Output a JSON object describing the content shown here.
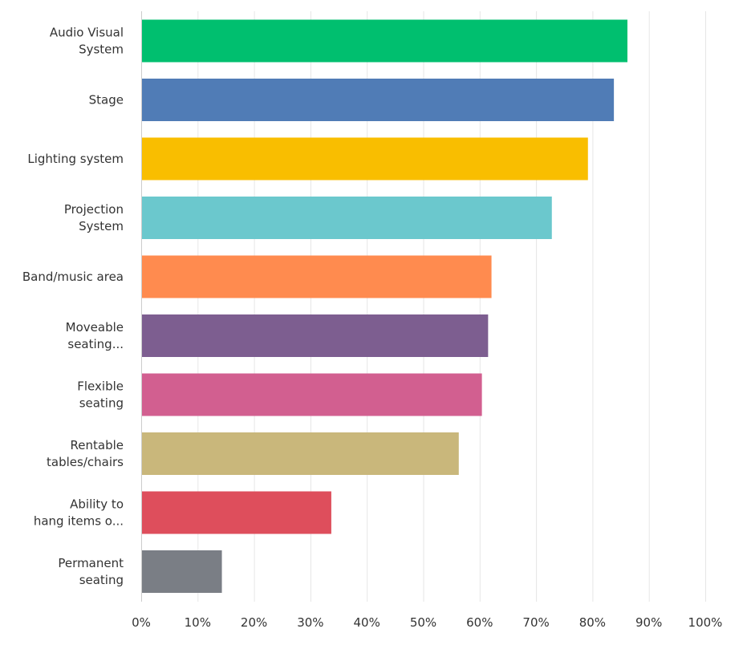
{
  "chart_data": {
    "type": "bar",
    "orientation": "horizontal",
    "title": "",
    "xlabel": "",
    "ylabel": "",
    "xlim": [
      0,
      100
    ],
    "grid": true,
    "categories": [
      [
        "Audio Visual",
        "System"
      ],
      [
        "Stage"
      ],
      [
        "Lighting system"
      ],
      [
        "Projection",
        "System"
      ],
      [
        "Band/music area"
      ],
      [
        "Moveable",
        "seating..."
      ],
      [
        "Flexible",
        "seating"
      ],
      [
        "Rentable",
        "tables/chairs"
      ],
      [
        "Ability to",
        "hang items o..."
      ],
      [
        "Permanent",
        "seating"
      ]
    ],
    "values": [
      86.2,
      83.8,
      79.2,
      72.8,
      62.1,
      61.5,
      60.4,
      56.3,
      33.7,
      14.3
    ],
    "colors": [
      "#00bf6f",
      "#507cb6",
      "#f9be00",
      "#6bc8cd",
      "#ff8b4f",
      "#7d5e90",
      "#d25f90",
      "#c9b77b",
      "#de4e5c",
      "#7a7e85"
    ],
    "ticks": [
      "0%",
      "10%",
      "20%",
      "30%",
      "40%",
      "50%",
      "60%",
      "70%",
      "80%",
      "90%",
      "100%"
    ]
  }
}
